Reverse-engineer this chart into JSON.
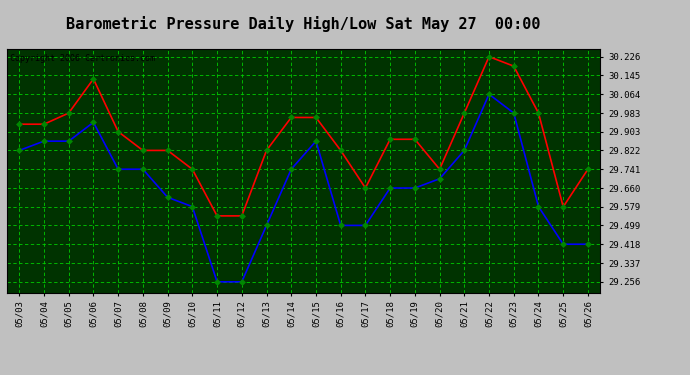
{
  "title": "Barometric Pressure Daily High/Low Sat May 27  00:00",
  "copyright": "Copyright 2006 Cartronics.com",
  "background_color": "#c0c0c0",
  "plot_bg_color": "#003300",
  "grid_color": "#00cc00",
  "grid_style": "--",
  "x_labels": [
    "05/03",
    "05/04",
    "05/05",
    "05/06",
    "05/07",
    "05/08",
    "05/09",
    "05/10",
    "05/11",
    "05/12",
    "05/13",
    "05/14",
    "05/15",
    "05/16",
    "05/17",
    "05/18",
    "05/19",
    "05/20",
    "05/21",
    "05/22",
    "05/23",
    "05/24",
    "05/25",
    "05/26"
  ],
  "high_values": [
    29.935,
    29.935,
    29.983,
    30.13,
    29.903,
    29.822,
    29.822,
    29.741,
    29.54,
    29.54,
    29.822,
    29.964,
    29.964,
    29.822,
    29.66,
    29.87,
    29.87,
    29.741,
    29.983,
    30.226,
    30.185,
    29.983,
    29.579,
    29.741
  ],
  "low_values": [
    29.822,
    29.862,
    29.862,
    29.943,
    29.741,
    29.741,
    29.62,
    29.58,
    29.256,
    29.256,
    29.499,
    29.741,
    29.862,
    29.499,
    29.499,
    29.66,
    29.66,
    29.7,
    29.822,
    30.064,
    29.983,
    29.58,
    29.418,
    29.418
  ],
  "high_color": "#ff0000",
  "low_color": "#0000ff",
  "marker_color": "#008800",
  "y_ticks": [
    29.256,
    29.337,
    29.418,
    29.499,
    29.579,
    29.66,
    29.741,
    29.822,
    29.903,
    29.983,
    30.064,
    30.145,
    30.226
  ],
  "ylim_min": 29.21,
  "ylim_max": 30.26,
  "line_width": 1.2,
  "marker_size": 3,
  "title_fontsize": 11,
  "tick_fontsize": 6.5,
  "copyright_fontsize": 6
}
